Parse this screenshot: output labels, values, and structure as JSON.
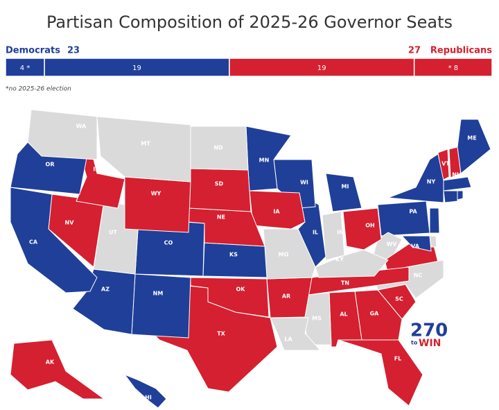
{
  "title": "Partisan Composition of 2025-26 Governor Seats",
  "summary": {
    "left_label": "Democrats",
    "left_total": 23,
    "right_total": 27,
    "right_label": "Republicans",
    "left_color": "#1f3f99",
    "right_color": "#d42030"
  },
  "bar": {
    "segments": [
      {
        "value": 4,
        "label": "4 *",
        "color": "#1f3f99"
      },
      {
        "value": 19,
        "label": "19",
        "color": "#1f3f99"
      },
      {
        "value": 19,
        "label": "19",
        "color": "#d42030"
      },
      {
        "value": 8,
        "label": "* 8",
        "color": "#d42030"
      }
    ]
  },
  "note": "*no 2025-26 election",
  "states": [
    {
      "label": "WA",
      "color": "#dadada"
    },
    {
      "label": "OR",
      "color": "#1f3f99"
    },
    {
      "label": "CA",
      "color": "#1f3f99"
    },
    {
      "label": "ID",
      "color": "#d42030"
    },
    {
      "label": "NV",
      "color": "#d42030"
    },
    {
      "label": "MT",
      "color": "#dadada"
    },
    {
      "label": "WY",
      "color": "#d42030"
    },
    {
      "label": "UT",
      "color": "#dadada"
    },
    {
      "label": "AZ",
      "color": "#1f3f99"
    },
    {
      "label": "CO",
      "color": "#1f3f99"
    },
    {
      "label": "NM",
      "color": "#1f3f99"
    },
    {
      "label": "ND",
      "color": "#dadada"
    },
    {
      "label": "SD",
      "color": "#d42030"
    },
    {
      "label": "NE",
      "color": "#d42030"
    },
    {
      "label": "KS",
      "color": "#1f3f99"
    },
    {
      "label": "OK",
      "color": "#d42030"
    },
    {
      "label": "TX",
      "color": "#d42030"
    },
    {
      "label": "MN",
      "color": "#1f3f99"
    },
    {
      "label": "IA",
      "color": "#d42030"
    },
    {
      "label": "MO",
      "color": "#dadada"
    },
    {
      "label": "AR",
      "color": "#d42030"
    },
    {
      "label": "LA",
      "color": "#dadada"
    },
    {
      "label": "WI",
      "color": "#1f3f99"
    },
    {
      "label": "IL",
      "color": "#1f3f99"
    },
    {
      "label": "MI",
      "color": "#1f3f99"
    },
    {
      "label": "IN",
      "color": "#dadada"
    },
    {
      "label": "OH",
      "color": "#d42030"
    },
    {
      "label": "KY",
      "color": "#dadada"
    },
    {
      "label": "TN",
      "color": "#d42030"
    },
    {
      "label": "MS",
      "color": "#dadada"
    },
    {
      "label": "AL",
      "color": "#d42030"
    },
    {
      "label": "GA",
      "color": "#d42030"
    },
    {
      "label": "FL",
      "color": "#d42030"
    },
    {
      "label": "SC",
      "color": "#d42030"
    },
    {
      "label": "NC",
      "color": "#dadada"
    },
    {
      "label": "VA",
      "color": "#d42030"
    },
    {
      "label": "WV",
      "color": "#dadada"
    },
    {
      "label": "PA",
      "color": "#1f3f99"
    },
    {
      "label": "NY",
      "color": "#1f3f99"
    },
    {
      "label": "ME",
      "color": "#1f3f99"
    },
    {
      "label": "VT",
      "color": "#d42030"
    },
    {
      "label": "NH",
      "color": "#d42030"
    },
    {
      "label": "AK",
      "color": "#d42030"
    },
    {
      "label": "HI",
      "color": "#1f3f99"
    }
  ],
  "logo": {
    "number": "270",
    "small": "to",
    "word": "WIN"
  }
}
